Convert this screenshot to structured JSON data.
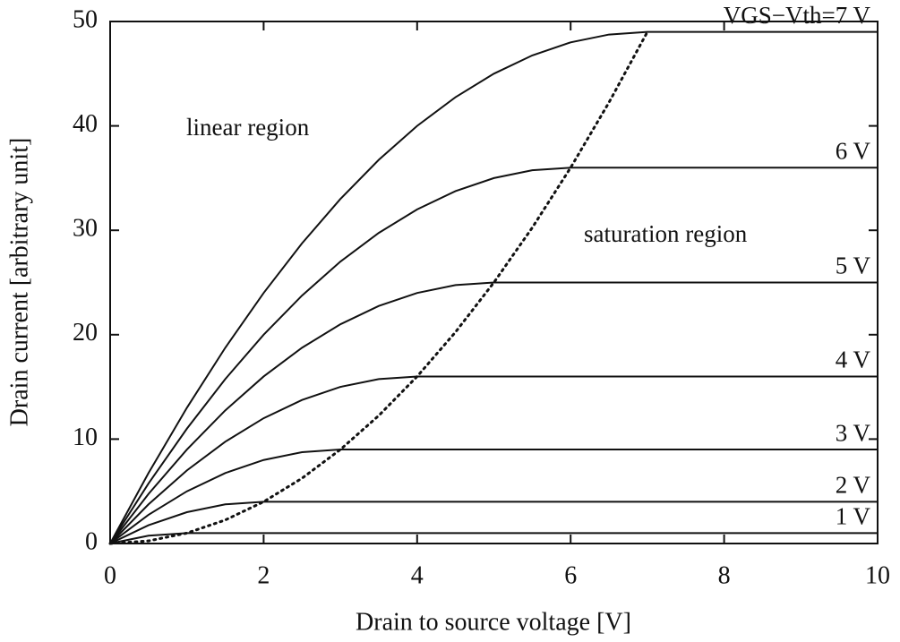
{
  "chart_data": {
    "type": "line",
    "x_label": "Drain to source voltage [V]",
    "y_label": "Drain current [arbitrary unit]",
    "annotations": [
      "linear region",
      "saturation region"
    ],
    "x": [
      0,
      0.5,
      1,
      1.5,
      2,
      2.5,
      3,
      3.5,
      4,
      4.5,
      5,
      5.5,
      6,
      6.5,
      7,
      7.5,
      8,
      8.5,
      9,
      9.5,
      10
    ],
    "series": [
      {
        "name": "1 V",
        "color": "#111111",
        "values": [
          0,
          0.75,
          1,
          1,
          1,
          1,
          1,
          1,
          1,
          1,
          1,
          1,
          1,
          1,
          1,
          1,
          1,
          1,
          1,
          1,
          1
        ]
      },
      {
        "name": "2 V",
        "color": "#111111",
        "values": [
          0,
          1.75,
          3,
          3.75,
          4,
          4,
          4,
          4,
          4,
          4,
          4,
          4,
          4,
          4,
          4,
          4,
          4,
          4,
          4,
          4,
          4
        ]
      },
      {
        "name": "3 V",
        "color": "#111111",
        "values": [
          0,
          2.75,
          5,
          6.75,
          8,
          8.75,
          9,
          9,
          9,
          9,
          9,
          9,
          9,
          9,
          9,
          9,
          9,
          9,
          9,
          9,
          9
        ]
      },
      {
        "name": "4 V",
        "color": "#111111",
        "values": [
          0,
          3.75,
          7,
          9.75,
          12,
          13.75,
          15,
          15.75,
          16,
          16,
          16,
          16,
          16,
          16,
          16,
          16,
          16,
          16,
          16,
          16,
          16
        ]
      },
      {
        "name": "5 V",
        "color": "#111111",
        "values": [
          0,
          4.75,
          9,
          12.75,
          16,
          18.75,
          21,
          22.75,
          24,
          24.75,
          25,
          25,
          25,
          25,
          25,
          25,
          25,
          25,
          25,
          25,
          25
        ]
      },
      {
        "name": "6 V",
        "color": "#111111",
        "values": [
          0,
          5.75,
          11,
          15.75,
          20,
          23.75,
          27,
          29.75,
          32,
          33.75,
          35,
          35.75,
          36,
          36,
          36,
          36,
          36,
          36,
          36,
          36,
          36
        ]
      },
      {
        "name": "VGS−Vth=7 V",
        "color": "#111111",
        "values": [
          0,
          6.75,
          13,
          18.75,
          24,
          28.75,
          33,
          36.75,
          40,
          42.75,
          45,
          46.75,
          48,
          48.75,
          49,
          49,
          49,
          49,
          49,
          49,
          49
        ]
      },
      {
        "color": "#111111",
        "dash": "dotted",
        "values": [
          0,
          0.25,
          1,
          2.25,
          4,
          6.25,
          9,
          12.25,
          16,
          20.25,
          25,
          30.25,
          36,
          42.25,
          49,
          null,
          null,
          null,
          null,
          null,
          null
        ]
      }
    ],
    "xlim": [
      0,
      10
    ],
    "xticks": [
      0,
      2,
      4,
      6,
      8,
      10
    ],
    "ylim": [
      0,
      50
    ],
    "yticks": [
      0,
      10,
      20,
      30,
      40,
      50
    ],
    "grid": false
  }
}
